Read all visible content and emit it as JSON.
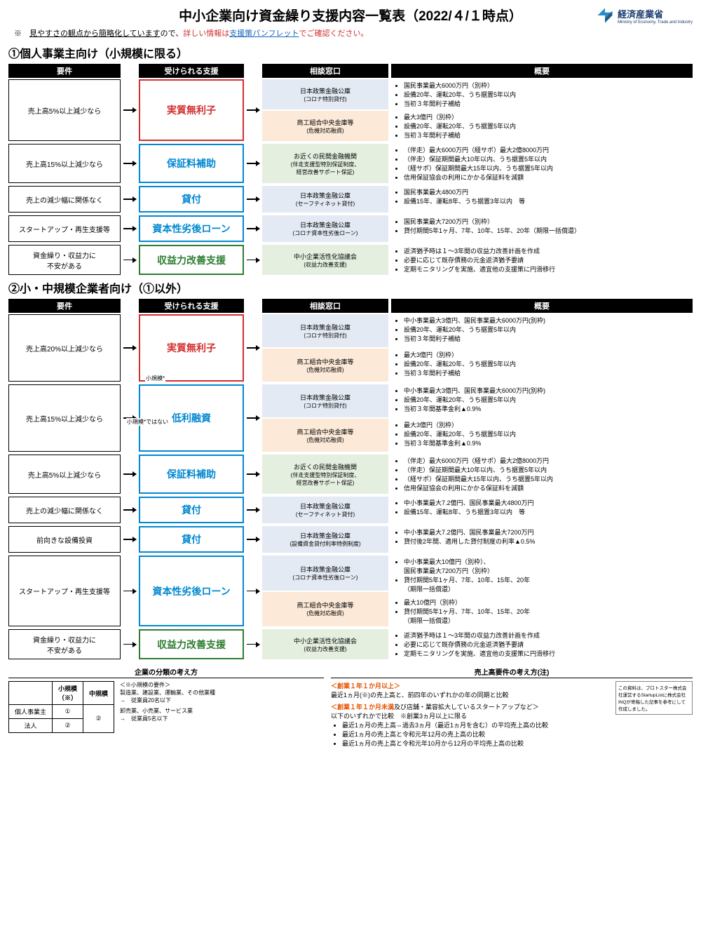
{
  "title": "中小企業向け資金繰り支援内容一覧表（2022/４/１時点）",
  "logo": {
    "main": "経済産業省",
    "sub": "Ministry of Economy, Trade and Industry"
  },
  "subtitle_prefix": "※　",
  "subtitle_u": "見やすさの観点から簡略化しています",
  "subtitle_mid": "ので、",
  "subtitle_red1": "詳しい情報は",
  "subtitle_link": "支援策パンフレット",
  "subtitle_red2": "でご確認ください。",
  "section1_title": "①個人事業主向け（小規模に限る）",
  "section2_title": "②小・中規模企業者向け（①以外）",
  "col_headers": [
    "要件",
    "受けられる支援",
    "相談窓口",
    "概要"
  ],
  "s1": {
    "rows": [
      {
        "req": "売上高5%以上減少なら",
        "support": "実質無利子",
        "support_class": "sp-red",
        "contacts": [
          {
            "c": "c-blue",
            "t": "日本政策金融公庫",
            "s": "(コロナ特別貸付)"
          },
          {
            "c": "c-orange",
            "t": "商工組合中央金庫等",
            "s": "(危機対応融資)"
          }
        ],
        "summaries": [
          [
            "国民事業最大6000万円（別枠）",
            "設備20年、運転20年、うち据置5年以内",
            "当初３年間利子補給"
          ],
          [
            "最大3億円（別枠）",
            "設備20年、運転20年、うち据置5年以内",
            "当初３年間利子補給"
          ]
        ]
      },
      {
        "req": "売上高15%以上減少なら",
        "support": "保証料補助",
        "support_class": "sp-blue",
        "contacts": [
          {
            "c": "c-green",
            "t": "お近くの民間金融機関",
            "s": "(伴走支援型特別保証制度、\n経営改善サポート保証)"
          }
        ],
        "summaries": [
          [
            "（伴走）最大6000万円（経サポ）最大2億8000万円",
            "（伴走）保証期間最大10年以内、うち据置5年以内",
            "（経サポ）保証期間最大15年以内、うち据置5年以内",
            "信用保証協会の利用にかかる保証料を減額"
          ]
        ]
      },
      {
        "req": "売上の減少幅に関係なく",
        "support": "貸付",
        "support_class": "sp-blue",
        "contacts": [
          {
            "c": "c-blue",
            "t": "日本政策金融公庫",
            "s": "(セーフティネット貸付)"
          }
        ],
        "summaries": [
          [
            "国民事業最大4800万円",
            "設備15年、運転8年、うち据置3年以内　等"
          ]
        ]
      },
      {
        "req": "スタートアップ・再生支援等",
        "support": "資本性劣後ローン",
        "support_class": "sp-blue",
        "contacts": [
          {
            "c": "c-blue",
            "t": "日本政策金融公庫",
            "s": "(コロナ資本性劣後ローン)"
          }
        ],
        "summaries": [
          [
            "国民事業最大7200万円（別枠）",
            "貸付期間5年1ヶ月、7年、10年、15年、20年（期限一括償還）"
          ]
        ]
      },
      {
        "req": "資金繰り・収益力に\n不安がある",
        "support": "収益力改善支援",
        "support_class": "sp-green",
        "contacts": [
          {
            "c": "c-green",
            "t": "中小企業活性化協議会",
            "s": "(収益力改善支援)"
          }
        ],
        "summaries": [
          [
            "返済猶予時は１～3年間の収益力改善計画を作成",
            "必要に応じて既存債務の元金返済猶予要請",
            "定期モニタリングを実施、適宜他の支援策に円滑移行"
          ]
        ]
      }
    ]
  },
  "s2": {
    "rows": [
      {
        "req": "売上高20%以上減少なら",
        "support": "実質無利子",
        "support_class": "sp-red",
        "tall": true,
        "contacts": [
          {
            "c": "c-blue",
            "t": "日本政策金融公庫",
            "s": "(コロナ特別貸付)"
          },
          {
            "c": "c-orange",
            "t": "商工組合中央金庫等",
            "s": "(危機対応融資)"
          }
        ],
        "summaries": [
          [
            "中小事業最大3億円、国民事業最大6000万円(別枠)",
            "設備20年、運転20年、うち据置5年以内",
            "当初３年間利子補給"
          ],
          [
            "最大3億円（別枠）",
            "設備20年、運転20年、うち据置5年以内",
            "当初３年間利子補給"
          ]
        ]
      },
      {
        "req": "売上高15%以上減少なら",
        "support": "低利融資",
        "support_class": "sp-blue",
        "tall": true,
        "contacts": [
          {
            "c": "c-blue",
            "t": "日本政策金融公庫",
            "s": "(コロナ特別貸付)"
          },
          {
            "c": "c-orange",
            "t": "商工組合中央金庫等",
            "s": "(危機対応融資)"
          }
        ],
        "summaries": [
          [
            "中小事業最大3億円、国民事業最大6000万円(別枠)",
            "設備20年、運転20年、うち据置5年以内",
            "当初３年間基準金利▲0.9%"
          ],
          [
            "最大3億円（別枠）",
            "設備20年、運転20年、うち据置5年以内",
            "当初３年間基準金利▲0.9%"
          ]
        ]
      },
      {
        "req": "売上高5%以上減少なら",
        "support": "保証料補助",
        "support_class": "sp-blue",
        "contacts": [
          {
            "c": "c-green",
            "t": "お近くの民間金融機関",
            "s": "(伴走支援型特別保証制度、\n経営改善サポート保証)"
          }
        ],
        "summaries": [
          [
            "（伴走）最大6000万円（経サポ）最大2億8000万円",
            "（伴走）保証期間最大10年以内、うち据置5年以内",
            "（経サポ）保証期間最大15年以内、うち据置5年以内",
            "信用保証協会の利用にかかる保証料を減額"
          ]
        ]
      },
      {
        "req": "売上の減少幅に関係なく",
        "support": "貸付",
        "support_class": "sp-blue",
        "contacts": [
          {
            "c": "c-blue",
            "t": "日本政策金融公庫",
            "s": "(セーフティネット貸付)"
          }
        ],
        "summaries": [
          [
            "中小事業最大7.2億円、国民事業最大4800万円",
            "設備15年、運転8年、うち据置3年以内　等"
          ]
        ]
      },
      {
        "req": "前向きな設備投資",
        "support": "貸付",
        "support_class": "sp-blue",
        "contacts": [
          {
            "c": "c-blue",
            "t": "日本政策金融公庫",
            "s": "(設備資金貸付利率特例制度)"
          }
        ],
        "summaries": [
          [
            "中小事業最大7.2億円、国民事業最大7200万円",
            "貸付後2年間、適用した貸付制度の利率▲0.5%"
          ]
        ]
      },
      {
        "req": "スタートアップ・再生支援等",
        "support": "資本性劣後ローン",
        "support_class": "sp-blue",
        "contacts": [
          {
            "c": "c-blue",
            "t": "日本政策金融公庫",
            "s": "(コロナ資本性劣後ローン)"
          },
          {
            "c": "c-orange",
            "t": "商工組合中央金庫等",
            "s": "(危機対応融資)"
          }
        ],
        "summaries": [
          [
            "中小事業最大10億円（別枠）、\n国民事業最大7200万円（別枠）",
            "貸付期間5年1ヶ月、7年、10年、15年、20年\n（期限一括償還）"
          ],
          [
            "最大10億円（別枠）",
            "貸付期間5年1ヶ月、7年、10年、15年、20年\n（期限一括償還）"
          ]
        ]
      },
      {
        "req": "資金繰り・収益力に\n不安がある",
        "support": "収益力改善支援",
        "support_class": "sp-green",
        "contacts": [
          {
            "c": "c-green",
            "t": "中小企業活性化協議会",
            "s": "(収益力改善支援)"
          }
        ],
        "summaries": [
          [
            "返済猶予時は１～3年間の収益力改善計画を作成",
            "必要に応じて既存債務の元金返済猶予要請",
            "定期モニタリングを実施、適宜他の支援策に円滑移行"
          ]
        ]
      }
    ],
    "labels": {
      "small": "小規模*",
      "notsmall": "小規模*ではない"
    }
  },
  "footer": {
    "left_title": "企業の分類の考え方",
    "right_title": "売上高要件の考え方(注)",
    "table": {
      "headers": [
        "",
        "小規模\n（※）",
        "中規模"
      ],
      "rows": [
        [
          "個人事業主",
          "①",
          ""
        ],
        [
          "法人",
          "②",
          "②"
        ]
      ],
      "merge_note": "②"
    },
    "small_req_title": "＜※小規模の要件＞",
    "small_req_lines": [
      "製造業、建設業、運輸業、その他業種\n→　従業員20名以下",
      "卸売業、小売業、サービス業\n→　従業員5名以下"
    ],
    "right_block1_title": "＜創業１年１か月以上＞",
    "right_block1_text": "最近1ヵ月(※)の売上高と、前四年のいずれかの年の同期と比較",
    "right_block2_title": "＜創業１年１か月未満",
    "right_block2_title2": "及び店舗・業容拡大しているスタートアップなど＞",
    "right_block2_intro": "以下のいずれかで比較　※創業3ヵ月以上に限る",
    "right_block2_items": [
      "最近1ヵ月の売上高⇔過去3ヵ月（最近1ヵ月を含む）の平均売上高の比較",
      "最近1ヵ月の売上高と令和元年12月の売上高の比較",
      "最近1ヵ月の売上高と令和元年10月から12月の平均売上高の比較"
    ],
    "credit": "この資料は、プロトスター株式会社運営するStartupListに株式会社INQが寄稿した記事を参考にして作成しました。"
  }
}
